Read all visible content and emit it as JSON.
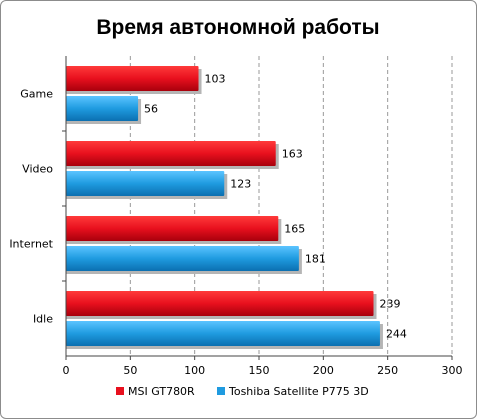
{
  "chart_data": {
    "type": "bar",
    "orientation": "horizontal",
    "title": "Время автономной работы",
    "categories": [
      "Game",
      "Video",
      "Internet",
      "Idle"
    ],
    "series": [
      {
        "name": "MSI GT780R",
        "color": "#e8101e",
        "values": [
          103,
          163,
          165,
          239
        ]
      },
      {
        "name": "Toshiba Satellite P775 3D",
        "color": "#1f9be0",
        "values": [
          56,
          123,
          181,
          244
        ]
      }
    ],
    "xlim": [
      0,
      300
    ],
    "xticks": [
      0,
      50,
      100,
      150,
      200,
      250,
      300
    ],
    "grid": true,
    "legend_position": "bottom"
  }
}
